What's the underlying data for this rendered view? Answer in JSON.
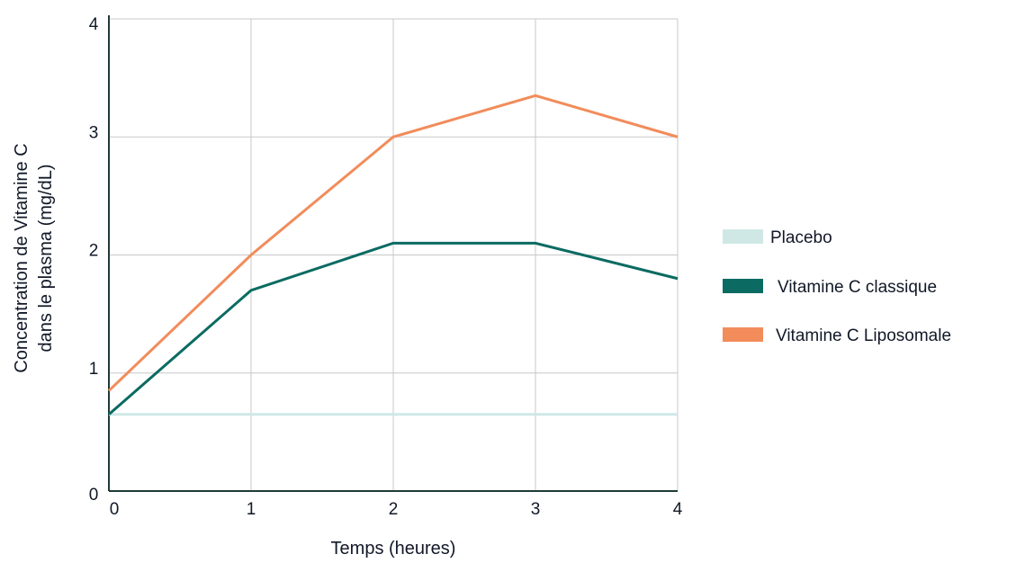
{
  "chart_data": {
    "type": "line",
    "title": "",
    "xlabel": "Temps (heures)",
    "ylabel_lines": [
      "Concentration de Vitamine C",
      "dans le plasma (mg/dL)"
    ],
    "x": [
      0,
      1,
      2,
      3,
      4
    ],
    "x_tick_labels": [
      "0",
      "1",
      "2",
      "3",
      "4"
    ],
    "y_tick_labels": [
      "0",
      "1",
      "2",
      "3",
      "4"
    ],
    "xlim": [
      0,
      4
    ],
    "ylim": [
      0,
      4
    ],
    "grid": true,
    "legend_position": "right",
    "series": [
      {
        "name": "Placebo",
        "color": "#cfe8e6",
        "values": [
          0.65,
          0.65,
          0.65,
          0.65,
          0.65
        ]
      },
      {
        "name": "Vitamine C classique",
        "color": "#0b6b62",
        "values": [
          0.65,
          1.7,
          2.1,
          2.1,
          1.8
        ]
      },
      {
        "name": "Vitamine C Liposomale",
        "color": "#f28c5b",
        "values": [
          0.85,
          2.0,
          3.0,
          3.35,
          3.0
        ]
      }
    ]
  }
}
